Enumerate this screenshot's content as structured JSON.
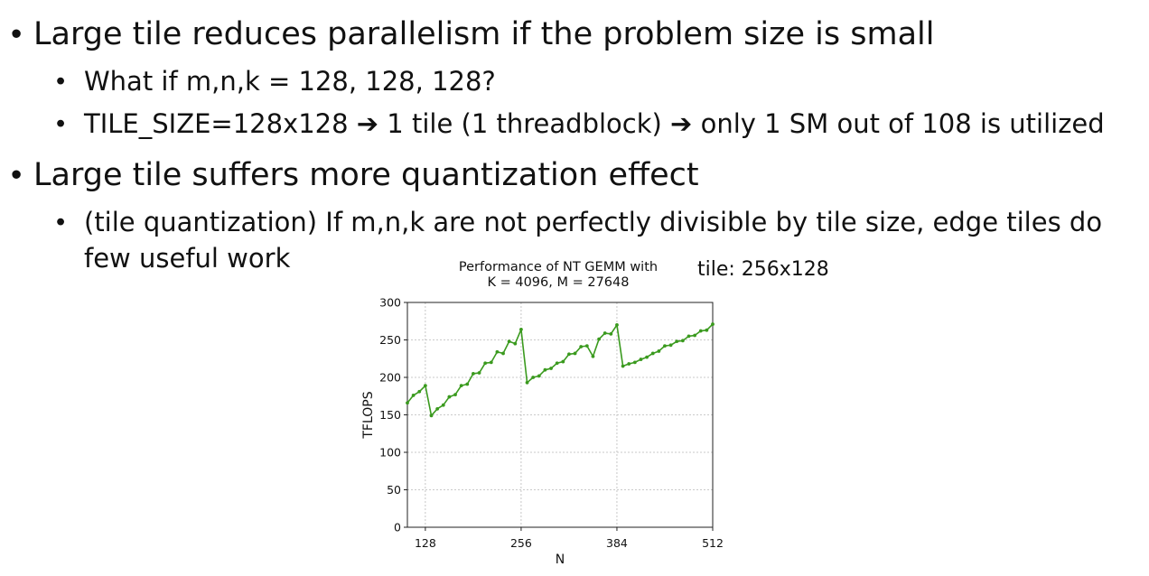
{
  "slide": {
    "bullets": [
      {
        "text": "Large tile reduces parallelism if the problem size is small",
        "children": [
          {
            "text": "What if m,n,k = 128, 128, 128?"
          },
          {
            "text_parts": [
              "TILE_SIZE=128x128 ",
              "➔",
              " 1 tile (1 threadblock) ",
              "➔",
              " only 1 SM out of 108 is utilized"
            ]
          }
        ]
      },
      {
        "text": "Large tile suffers more quantization effect",
        "children": [
          {
            "line1": "(tile quantization) If m,n,k are not perfectly divisible by tile size, edge tiles do",
            "line2": "few useful work"
          }
        ]
      }
    ],
    "tile_annotation": "tile: 256x128"
  },
  "chart_data": {
    "type": "line",
    "title_line1": "Performance of NT GEMM with",
    "title_line2": "K = 4096, M = 27648",
    "xlabel": "N",
    "ylabel": "TFLOPS",
    "xlim": [
      104,
      512
    ],
    "ylim": [
      0,
      300
    ],
    "xticks": [
      128,
      256,
      384,
      512
    ],
    "yticks": [
      0,
      50,
      100,
      150,
      200,
      250,
      300
    ],
    "grid": true,
    "line_color": "#3a9a1e",
    "x": [
      104,
      112,
      120,
      128,
      136,
      144,
      152,
      160,
      168,
      176,
      184,
      192,
      200,
      208,
      216,
      224,
      232,
      240,
      248,
      256,
      264,
      272,
      280,
      288,
      296,
      304,
      312,
      320,
      328,
      336,
      344,
      352,
      360,
      368,
      376,
      384,
      392,
      400,
      408,
      416,
      424,
      432,
      440,
      448,
      456,
      464,
      472,
      480,
      488,
      496,
      504,
      512
    ],
    "y": [
      166,
      176,
      181,
      189,
      149,
      158,
      163,
      174,
      177,
      189,
      191,
      205,
      206,
      219,
      220,
      234,
      232,
      248,
      245,
      264,
      193,
      200,
      202,
      210,
      212,
      219,
      221,
      231,
      232,
      241,
      242,
      228,
      251,
      259,
      258,
      270,
      215,
      218,
      220,
      224,
      227,
      232,
      235,
      242,
      243,
      248,
      249,
      255,
      256,
      262,
      263,
      271
    ]
  }
}
